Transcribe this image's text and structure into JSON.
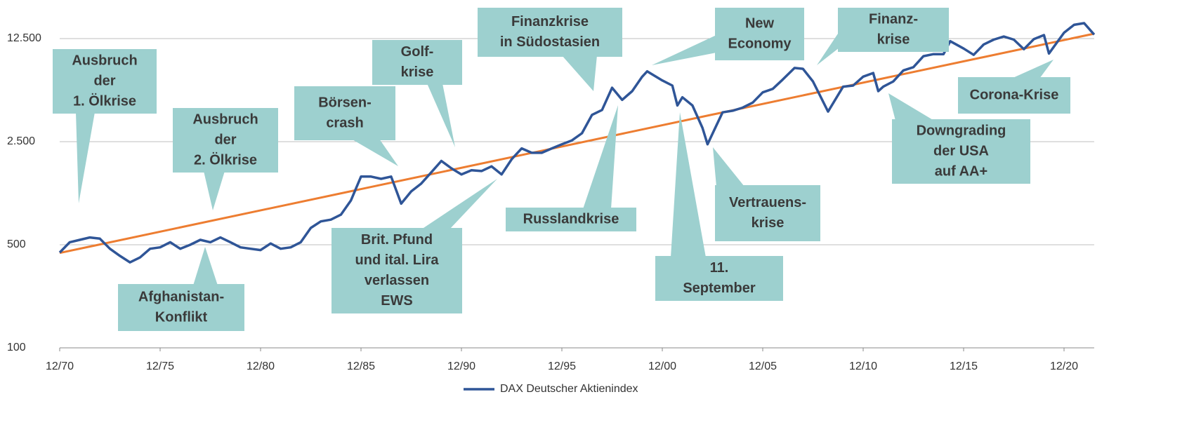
{
  "chart_data": {
    "type": "line",
    "y_scale": "log",
    "grid": true,
    "legend": "bottom",
    "xlim": [
      "12/70",
      "06/22"
    ],
    "xticks": [
      "12/70",
      "12/75",
      "12/80",
      "12/85",
      "12/90",
      "12/95",
      "12/00",
      "12/05",
      "12/10",
      "12/15",
      "12/20"
    ],
    "ylim": [
      100,
      12500
    ],
    "yticks": [
      100,
      500,
      {
        "value": 2500,
        "label": "2.500"
      },
      {
        "value": 12500,
        "label": "12.500"
      }
    ],
    "x": [
      "12/70",
      "06/71",
      "12/71",
      "06/72",
      "12/72",
      "06/73",
      "12/73",
      "06/74",
      "12/74",
      "06/75",
      "12/75",
      "06/76",
      "12/76",
      "06/77",
      "12/77",
      "06/78",
      "12/78",
      "06/79",
      "12/79",
      "06/80",
      "12/80",
      "06/81",
      "12/81",
      "06/82",
      "12/82",
      "06/83",
      "12/83",
      "06/84",
      "12/84",
      "06/85",
      "12/85",
      "06/86",
      "12/86",
      "06/87",
      "12/87",
      "06/88",
      "12/88",
      "06/89",
      "12/89",
      "06/90",
      "12/90",
      "06/91",
      "12/91",
      "06/92",
      "12/92",
      "06/93",
      "12/93",
      "06/94",
      "12/94",
      "06/95",
      "12/95",
      "06/96",
      "12/96",
      "06/97",
      "12/97",
      "06/98",
      "12/98",
      "06/99",
      "12/99",
      "03/00",
      "12/00",
      "06/01",
      "09/01",
      "12/01",
      "06/02",
      "12/02",
      "03/03",
      "12/03",
      "06/04",
      "12/04",
      "06/05",
      "12/05",
      "06/06",
      "12/06",
      "07/07",
      "12/07",
      "06/08",
      "03/09",
      "12/09",
      "06/10",
      "12/10",
      "06/11",
      "09/11",
      "12/11",
      "06/12",
      "12/12",
      "06/13",
      "12/13",
      "06/14",
      "12/14",
      "04/15",
      "12/15",
      "06/16",
      "12/16",
      "06/17",
      "12/17",
      "06/18",
      "12/18",
      "06/19",
      "12/19",
      "03/20",
      "12/20",
      "06/21",
      "12/21",
      "06/22"
    ],
    "series": [
      {
        "name": "DAX Deutscher Aktienindex",
        "color": "#2f5597",
        "values": [
          443,
          520,
          540,
          560,
          550,
          470,
          420,
          380,
          410,
          470,
          480,
          520,
          470,
          500,
          540,
          520,
          560,
          520,
          480,
          470,
          460,
          510,
          470,
          480,
          520,
          650,
          720,
          740,
          800,
          1000,
          1450,
          1450,
          1400,
          1450,
          950,
          1150,
          1300,
          1550,
          1850,
          1650,
          1500,
          1600,
          1580,
          1700,
          1500,
          1900,
          2250,
          2100,
          2100,
          2250,
          2400,
          2550,
          2850,
          3800,
          4100,
          5800,
          4800,
          5500,
          6900,
          7500,
          6500,
          6000,
          4400,
          5000,
          4400,
          3100,
          2400,
          3950,
          4050,
          4250,
          4600,
          5400,
          5700,
          6600,
          7900,
          7800,
          6400,
          4000,
          5900,
          6000,
          6900,
          7300,
          5500,
          5900,
          6400,
          7600,
          8000,
          9500,
          9800,
          9800,
          12000,
          10700,
          9700,
          11400,
          12300,
          12900,
          12300,
          10600,
          12400,
          13200,
          9900,
          13700,
          15500,
          15900,
          13300
        ]
      }
    ],
    "trend_line": {
      "color": "#ed7d31",
      "x": [
        "12/70",
        "06/22"
      ],
      "values": [
        440,
        13500
      ]
    },
    "annotations": [
      {
        "lines": [
          "Ausbruch",
          "der",
          "1. Ölkrise"
        ]
      },
      {
        "lines": [
          "Afghanistan-",
          "Konflikt"
        ]
      },
      {
        "lines": [
          "Ausbruch",
          "der",
          "2. Ölkrise"
        ]
      },
      {
        "lines": [
          "Börsen-",
          "crash"
        ]
      },
      {
        "lines": [
          "Brit. Pfund",
          "und ital. Lira",
          "verlassen",
          "EWS"
        ]
      },
      {
        "lines": [
          "Golf-",
          "krise"
        ]
      },
      {
        "lines": [
          "Finanzkrise",
          "in Südostasien"
        ]
      },
      {
        "lines": [
          "Russlandkrise"
        ]
      },
      {
        "lines": [
          "New",
          "Economy"
        ]
      },
      {
        "lines": [
          "11.",
          "September"
        ]
      },
      {
        "lines": [
          "Vertrauens-",
          "krise"
        ]
      },
      {
        "lines": [
          "Finanz-",
          "krise"
        ]
      },
      {
        "lines": [
          "Downgrading",
          "der USA",
          "auf AA+"
        ]
      },
      {
        "lines": [
          "Corona-Krise"
        ]
      }
    ]
  }
}
